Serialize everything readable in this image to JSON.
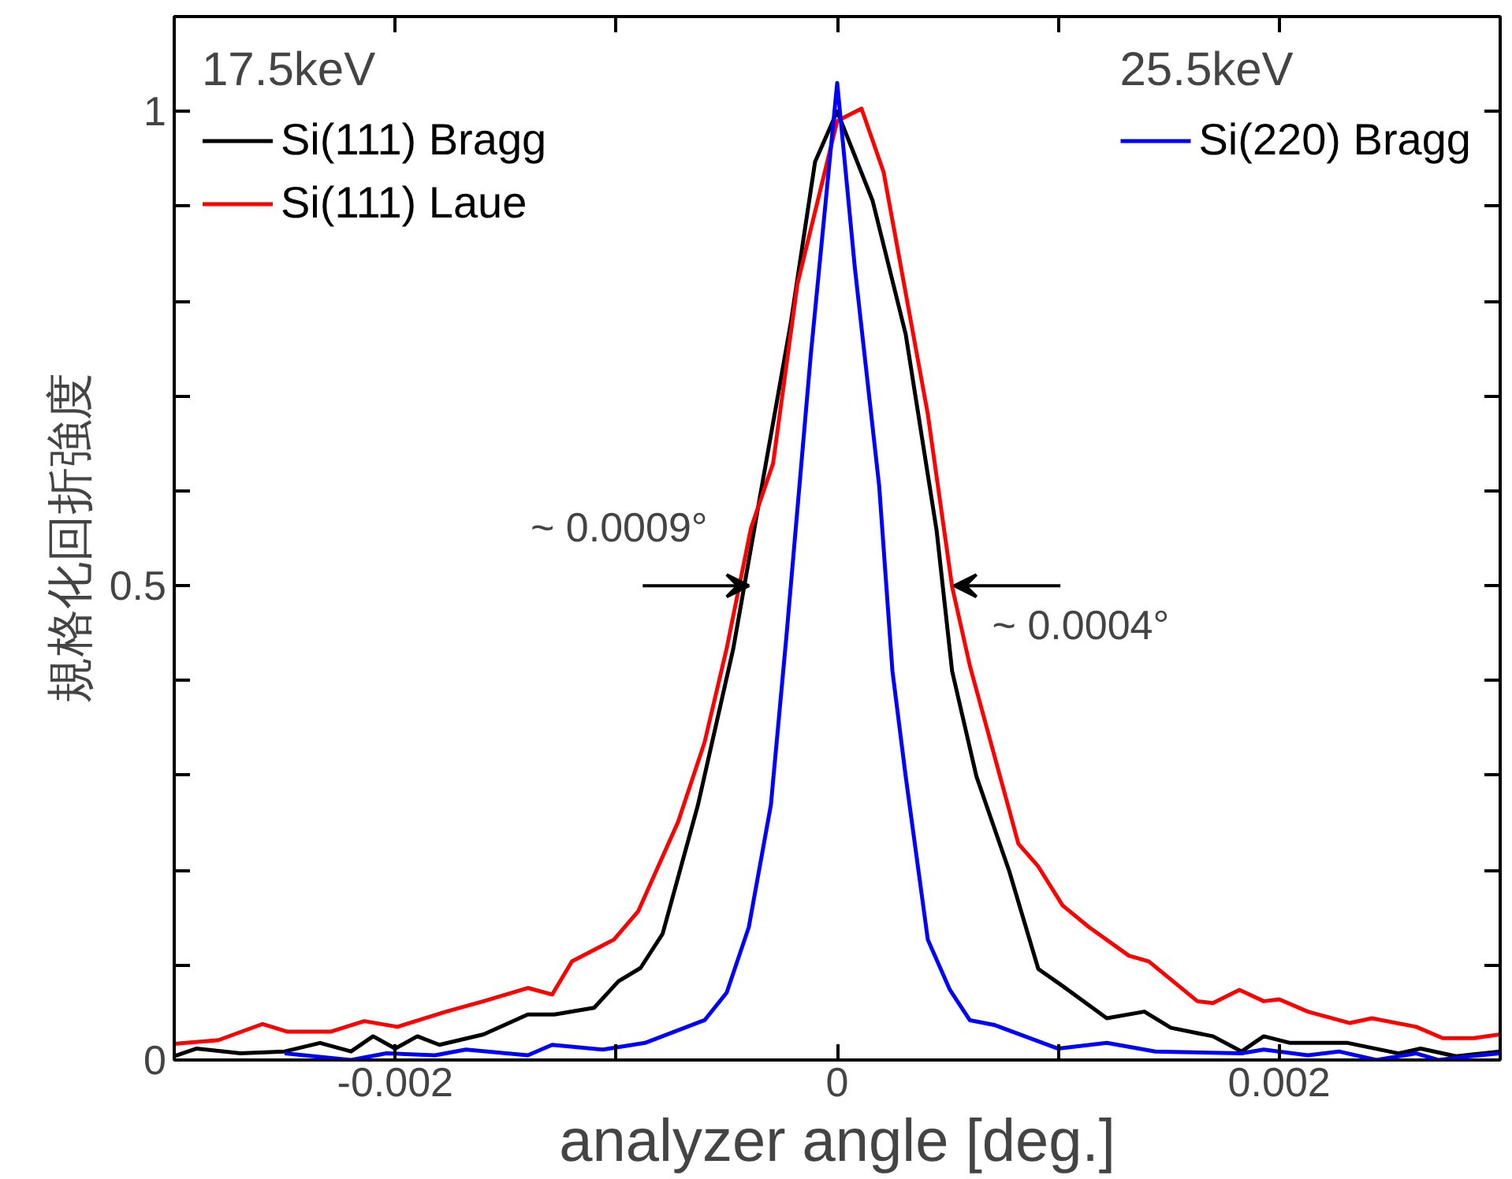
{
  "chart_data": {
    "type": "line",
    "xlabel": "analyzer angle [deg.]",
    "ylabel": "規格化回折強度",
    "xlim": [
      -0.003,
      0.003
    ],
    "ylim": [
      0,
      1.1
    ],
    "xticks": [
      -0.002,
      {
        "value": -0.001,
        "label": null
      },
      0,
      {
        "value": 0.001,
        "label": null
      },
      0.002
    ],
    "yticks": [
      0,
      {
        "value": 0.1,
        "label": null
      },
      {
        "value": 0.2,
        "label": null
      },
      {
        "value": 0.3,
        "label": null
      },
      {
        "value": 0.4,
        "label": null
      },
      0.5,
      {
        "value": 0.6,
        "label": null
      },
      {
        "value": 0.7,
        "label": null
      },
      {
        "value": 0.8,
        "label": null
      },
      {
        "value": 0.9,
        "label": null
      },
      1
    ],
    "grid": false,
    "legend": "top",
    "line_style": "solid",
    "marker": "none",
    "annotations": [
      "17.5keV",
      "25.5keV",
      {
        "text": "~ 0.0009°",
        "x": -0.0004,
        "y": 0.5
      },
      {
        "text": "~ 0.0004°",
        "x": 0.00053,
        "y": 0.5
      }
    ],
    "series": [
      {
        "name": "Si(111) Bragg",
        "color": "#000000",
        "x": [
          -0.003,
          -0.0029,
          -0.0027,
          -0.0025,
          -0.00234,
          -0.0022,
          -0.0021,
          -0.002,
          -0.0019,
          -0.0018,
          -0.0016,
          -0.0014,
          -0.00128,
          -0.0011,
          -0.00099,
          -0.00089,
          -0.00079,
          -0.00063,
          -0.00047,
          -0.00035,
          -0.00021,
          -0.0001,
          0,
          0.00016,
          0.00031,
          0.00045,
          0.00052,
          0.00063,
          0.00078,
          0.00091,
          0.00102,
          0.00122,
          0.00139,
          0.00151,
          0.0017,
          0.00183,
          0.00193,
          0.00205,
          0.00218,
          0.00231,
          0.00254,
          0.00264,
          0.0028,
          0.003
        ],
        "values": [
          0.004,
          0.012,
          0.007,
          0.009,
          0.018,
          0.009,
          0.025,
          0.012,
          0.025,
          0.016,
          0.027,
          0.048,
          0.048,
          0.055,
          0.083,
          0.097,
          0.133,
          0.269,
          0.434,
          0.593,
          0.777,
          0.947,
          1.0,
          0.906,
          0.765,
          0.558,
          0.41,
          0.299,
          0.198,
          0.096,
          0.078,
          0.044,
          0.051,
          0.034,
          0.025,
          0.009,
          0.025,
          0.018,
          0.018,
          0.018,
          0.007,
          0.012,
          0.004,
          0.009
        ]
      },
      {
        "name": "Si(111) Laue",
        "color": "#ff0000",
        "x": [
          -0.003,
          -0.0028,
          -0.0026,
          -0.00249,
          -0.00229,
          -0.00214,
          -0.00199,
          -0.00177,
          -0.0016,
          -0.0014,
          -0.00129,
          -0.0012,
          -0.00101,
          -0.0009,
          -0.00072,
          -0.0006,
          -0.0005,
          -0.00039,
          -0.00029,
          -0.00018,
          0,
          0.00011,
          0.00021,
          0.00041,
          0.00052,
          0.0006,
          0.00082,
          0.00091,
          0.00102,
          0.00114,
          0.00132,
          0.00141,
          0.00163,
          0.0017,
          0.00182,
          0.00193,
          0.002,
          0.00213,
          0.00232,
          0.00242,
          0.00262,
          0.00274,
          0.00288,
          0.003
        ],
        "values": [
          0.017,
          0.021,
          0.038,
          0.03,
          0.03,
          0.041,
          0.035,
          0.051,
          0.062,
          0.076,
          0.069,
          0.104,
          0.127,
          0.157,
          0.251,
          0.335,
          0.434,
          0.561,
          0.629,
          0.818,
          0.99,
          1.003,
          0.936,
          0.681,
          0.499,
          0.416,
          0.228,
          0.204,
          0.163,
          0.14,
          0.11,
          0.104,
          0.062,
          0.06,
          0.074,
          0.062,
          0.064,
          0.051,
          0.039,
          0.044,
          0.035,
          0.023,
          0.023,
          0.027
        ]
      },
      {
        "name": "Si(220) Bragg",
        "color": "#0000ff",
        "x": [
          -0.0025,
          -0.0022,
          -0.00204,
          -0.00182,
          -0.00168,
          -0.0014,
          -0.00129,
          -0.00106,
          -0.00087,
          -0.0006,
          -0.0005,
          -0.0004,
          -0.0003,
          -0.00023,
          -0.00012,
          0,
          8e-05,
          0.00019,
          0.00025,
          0.00031,
          0.00041,
          0.00051,
          0.0006,
          0.00071,
          0.001,
          0.00122,
          0.00144,
          0.00183,
          0.00193,
          0.00213,
          0.00227,
          0.00244,
          0.00262,
          0.00272,
          0.00286,
          0.003
        ],
        "values": [
          0.007,
          0,
          0.007,
          0.005,
          0.011,
          0.005,
          0.016,
          0.011,
          0.018,
          0.042,
          0.071,
          0.14,
          0.269,
          0.446,
          0.742,
          1.03,
          0.835,
          0.605,
          0.41,
          0.299,
          0.127,
          0.074,
          0.042,
          0.037,
          0.012,
          0.018,
          0.009,
          0.007,
          0.011,
          0.005,
          0.009,
          0,
          0.007,
          0,
          0.004,
          0.007
        ]
      }
    ]
  }
}
